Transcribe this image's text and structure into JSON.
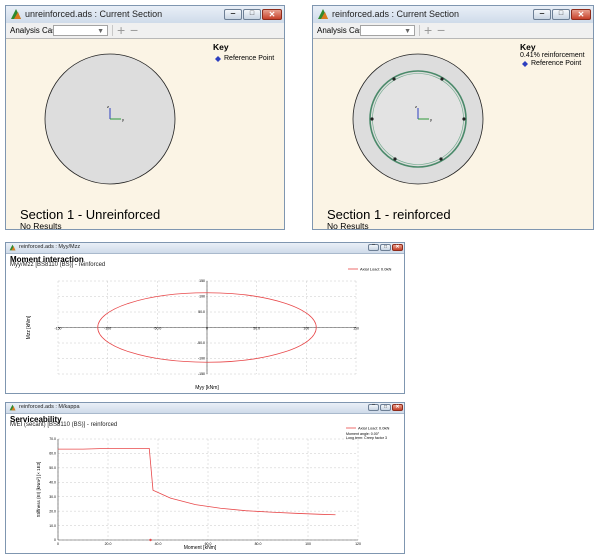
{
  "window_unreinforced": {
    "title": "unreinforced.ads : Current Section",
    "toolbar": {
      "analysis_case_label": "Analysis Case",
      "analysis_case_value": "",
      "add_label": "+",
      "remove_label": "−"
    },
    "key": {
      "title": "Key",
      "lines": [
        "Reference Point"
      ]
    },
    "section_title": "Section 1 - Unreinforced",
    "section_status": "No Results",
    "axis_z": "z",
    "axis_y": "y"
  },
  "window_reinforced": {
    "title": "reinforced.ads : Current Section",
    "toolbar": {
      "analysis_case_label": "Analysis Case",
      "analysis_case_value": "",
      "add_label": "+",
      "remove_label": "−"
    },
    "key": {
      "title": "Key",
      "lines": [
        "0.41% reinforcement",
        "Reference Point"
      ]
    },
    "section_title": "Section 1 - reinforced",
    "section_status": "No Results",
    "axis_z": "z",
    "axis_y": "y"
  },
  "window_moment": {
    "title": "reinforced.ads : Myy/Mzz",
    "chart_title": "Moment interaction",
    "chart_subtitle": "Myy/Mzz [BS8110 (BS)] - reinforced"
  },
  "window_serviceability": {
    "title": "reinforced.ads : M/kappa",
    "chart_title": "Serviceability",
    "chart_subtitle": "M/EI (secant) [BS8110 (BS)] - reinforced"
  },
  "colors": {
    "series": "#e8484a",
    "section_fill": "#dddddd",
    "rebar_ring": "#4a8a6a",
    "canvas": "#fbf4e5"
  },
  "chart_data": [
    {
      "type": "line",
      "title": "Moment interaction",
      "xlabel": "Myy [kNm]",
      "ylabel": "Mzz [kNm]",
      "xlim": [
        -150,
        150
      ],
      "ylim": [
        -150,
        150
      ],
      "x_ticks": [
        "-150",
        "-100",
        "-50.0",
        "0",
        "50.0",
        "100",
        "150"
      ],
      "x_tick_values": [
        -150,
        -100,
        -50,
        0,
        50,
        100,
        150
      ],
      "y_ticks": [
        "150",
        "100",
        "50.0",
        "0",
        "-50.0",
        "-100",
        "-150"
      ],
      "y_tick_values": [
        150,
        100,
        50,
        0,
        -50,
        -100,
        -150
      ],
      "grid": true,
      "legend": "top-right",
      "series": [
        {
          "name": "Axial Load: 0.0kN",
          "shape": "ellipse",
          "center": [
            0,
            0
          ],
          "x_extent": 110,
          "y_extent": 112
        }
      ]
    },
    {
      "type": "line",
      "title": "Serviceability",
      "xlabel": "Moment [kNm]",
      "ylabel": "Stiffness (EI) [kNm²] [× 1E3]",
      "xlim": [
        0,
        120
      ],
      "ylim": [
        0,
        70
      ],
      "x_ticks": [
        "0",
        "20.0",
        "40.0",
        "60.0",
        "80.0",
        "100",
        "120"
      ],
      "x_tick_values": [
        0,
        20,
        40,
        60,
        80,
        100,
        120
      ],
      "y_ticks": [
        "70.0",
        "60.0",
        "50.0",
        "40.0",
        "30.0",
        "20.0",
        "10.0",
        "0"
      ],
      "y_tick_values": [
        70,
        60,
        50,
        40,
        30,
        20,
        10,
        0
      ],
      "grid": true,
      "legend": "top-right",
      "legend_notes": [
        "Moment angle: 0.00°",
        "Long term: Creep factor 3"
      ],
      "series": [
        {
          "name": "Axial Load: 0.0kN",
          "x": [
            0,
            10,
            20,
            30,
            36.5,
            38,
            45,
            55,
            65,
            75,
            85,
            95,
            105,
            111
          ],
          "y": [
            63,
            63,
            63.5,
            63.5,
            63.5,
            34.5,
            29,
            24.5,
            22,
            20.3,
            19.3,
            18.5,
            17.8,
            17.5
          ]
        }
      ],
      "marker": {
        "x": 37,
        "y": 0
      }
    }
  ]
}
